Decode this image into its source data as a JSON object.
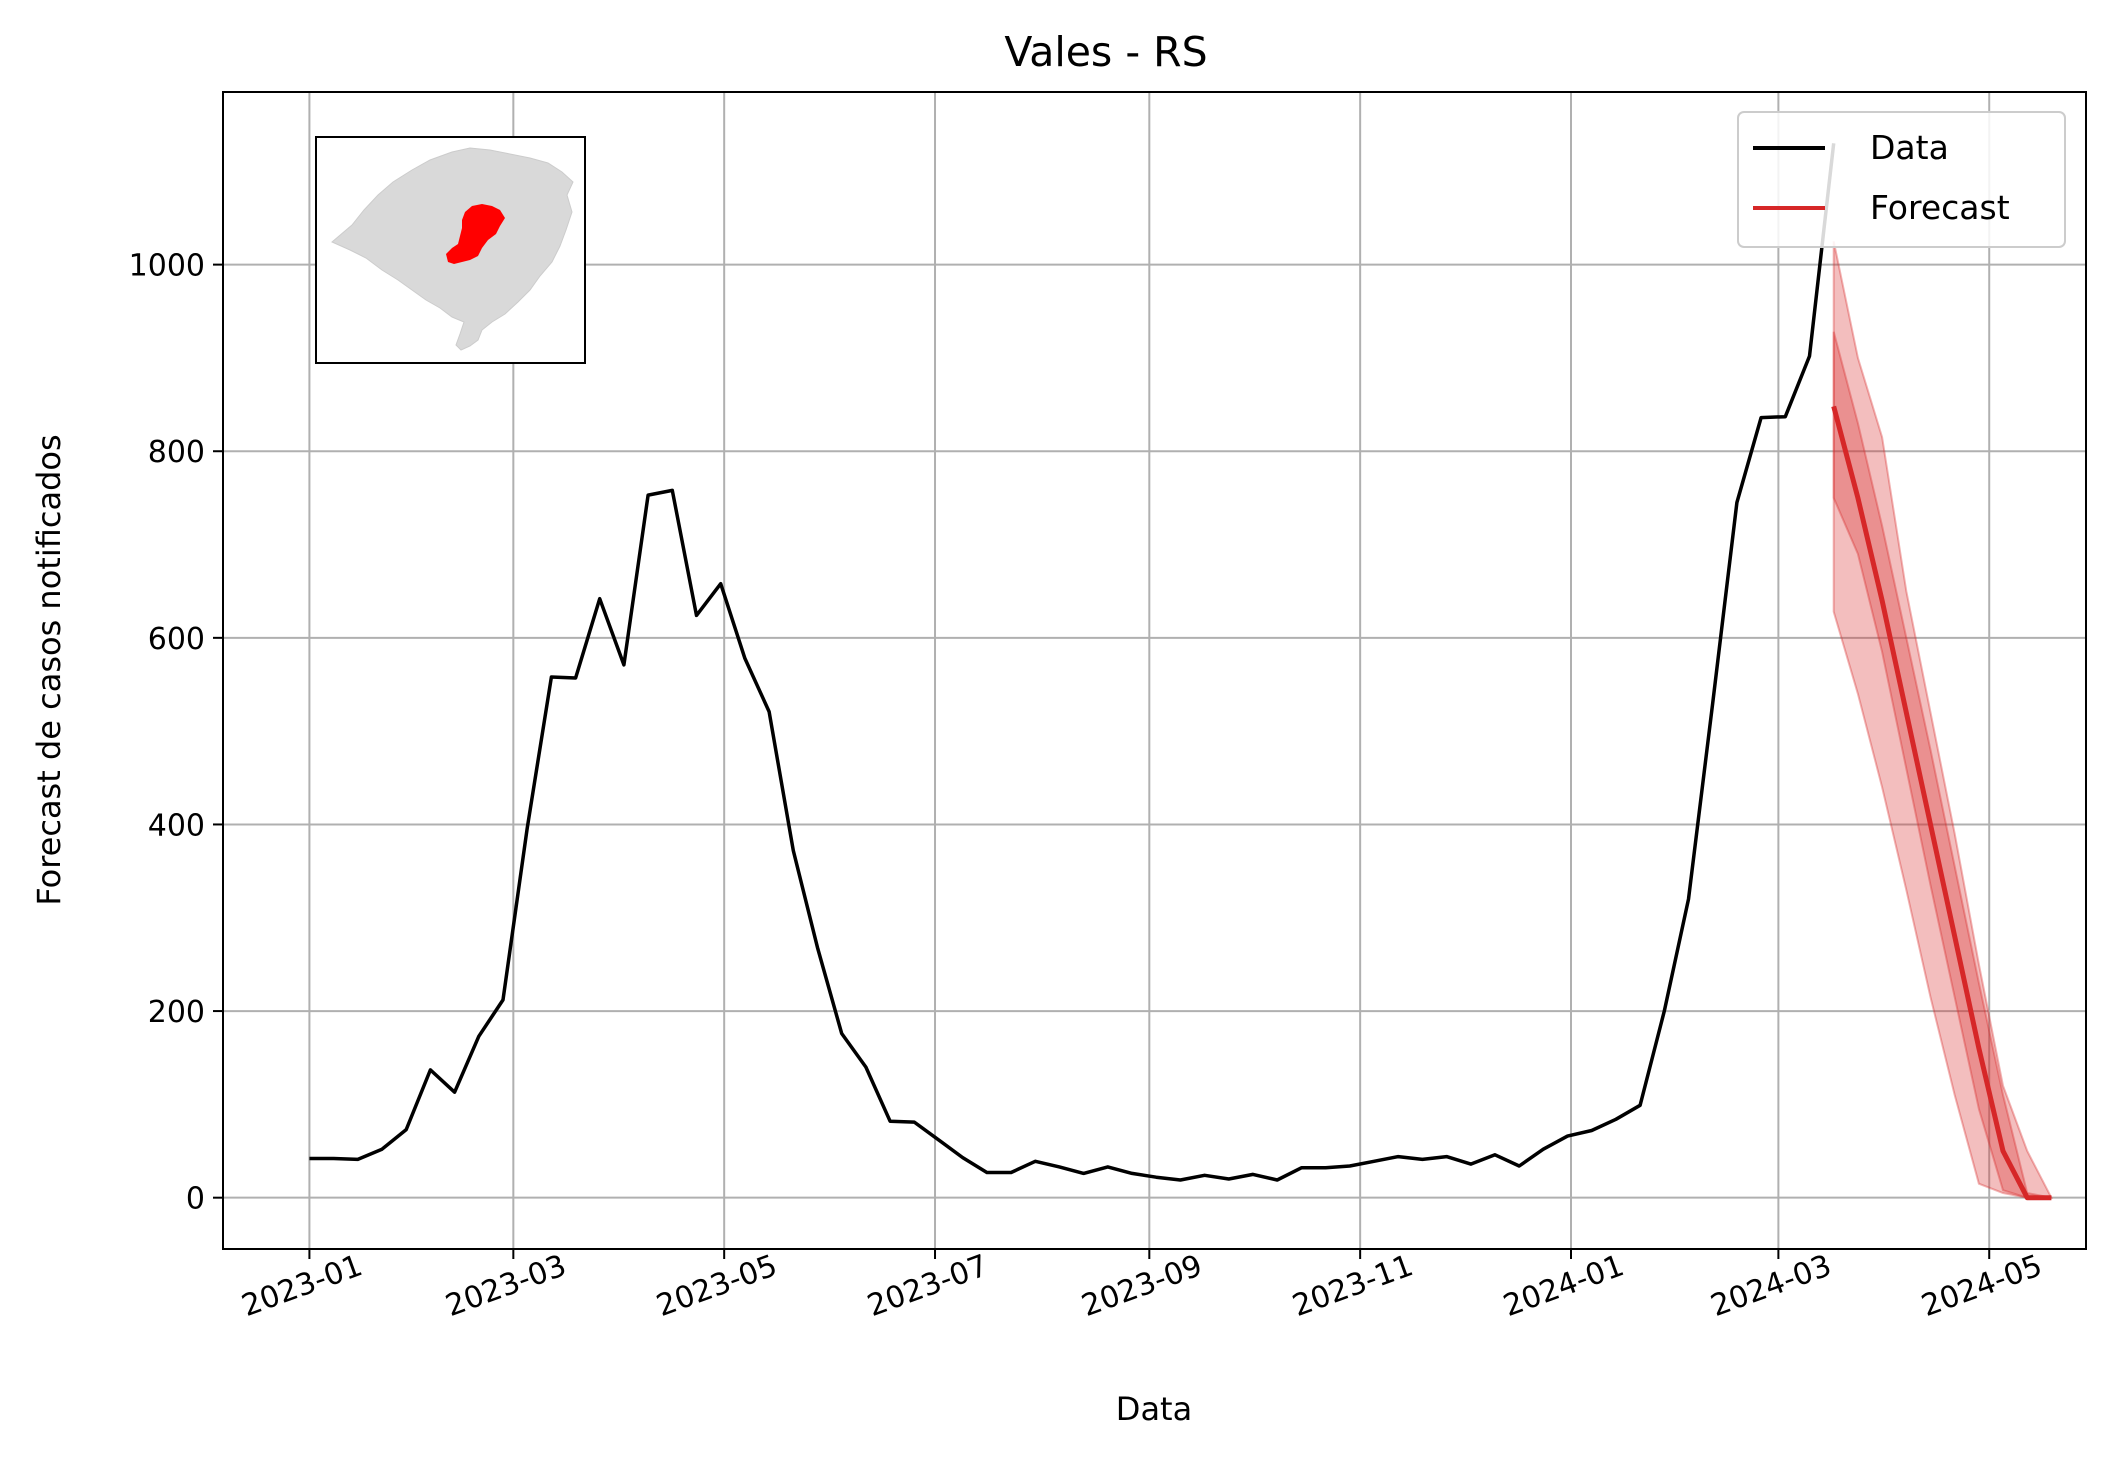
{
  "chart_data": {
    "type": "line",
    "title": "Vales - RS",
    "xlabel": "Data",
    "ylabel": "Forecast de casos notificados",
    "x_ticks": [
      "2023-01",
      "2023-03",
      "2023-05",
      "2023-07",
      "2023-09",
      "2023-11",
      "2024-01",
      "2024-03",
      "2024-05"
    ],
    "y_ticks": [
      0,
      200,
      400,
      600,
      800,
      1000
    ],
    "xlim": [
      "2022-12-07",
      "2024-05-29"
    ],
    "ylim": [
      -55,
      1185
    ],
    "grid": true,
    "legend_position": "top-right",
    "inset_map": {
      "description_icon": "rio-grande-do-sul-map-icon",
      "highlight_color": "#ff0000",
      "base_color": "#d9d9d9"
    },
    "series": [
      {
        "name": "Data",
        "color": "#000000",
        "x": [
          "2023-01-01",
          "2023-01-08",
          "2023-01-15",
          "2023-01-22",
          "2023-01-29",
          "2023-02-05",
          "2023-02-12",
          "2023-02-19",
          "2023-02-26",
          "2023-03-05",
          "2023-03-12",
          "2023-03-19",
          "2023-03-26",
          "2023-04-02",
          "2023-04-09",
          "2023-04-16",
          "2023-04-23",
          "2023-04-30",
          "2023-05-07",
          "2023-05-14",
          "2023-05-21",
          "2023-05-28",
          "2023-06-04",
          "2023-06-11",
          "2023-06-18",
          "2023-06-25",
          "2023-07-02",
          "2023-07-09",
          "2023-07-16",
          "2023-07-23",
          "2023-07-30",
          "2023-08-06",
          "2023-08-13",
          "2023-08-20",
          "2023-08-27",
          "2023-09-03",
          "2023-09-10",
          "2023-09-17",
          "2023-09-24",
          "2023-10-01",
          "2023-10-08",
          "2023-10-15",
          "2023-10-22",
          "2023-10-29",
          "2023-11-05",
          "2023-11-12",
          "2023-11-19",
          "2023-11-26",
          "2023-12-03",
          "2023-12-10",
          "2023-12-17",
          "2023-12-24",
          "2023-12-31",
          "2024-01-07",
          "2024-01-14",
          "2024-01-21",
          "2024-01-28",
          "2024-02-04",
          "2024-02-11",
          "2024-02-18",
          "2024-02-25",
          "2024-03-03",
          "2024-03-10",
          "2024-03-17"
        ],
        "y": [
          42,
          42,
          41,
          52,
          73,
          137,
          113,
          173,
          212,
          396,
          558,
          557,
          642,
          571,
          753,
          758,
          624,
          658,
          578,
          521,
          372,
          268,
          176,
          140,
          82,
          81,
          62,
          43,
          27,
          27,
          39,
          33,
          26,
          33,
          26,
          22,
          19,
          24,
          20,
          25,
          19,
          32,
          32,
          34,
          39,
          44,
          41,
          44,
          36,
          46,
          34,
          52,
          66,
          72,
          84,
          99,
          200,
          320,
          530,
          745,
          836,
          837,
          902,
          1130
        ]
      },
      {
        "name": "Forecast",
        "color": "#d62728",
        "x": [
          "2024-03-17",
          "2024-03-24",
          "2024-03-31",
          "2024-04-07",
          "2024-04-14",
          "2024-04-21",
          "2024-04-28",
          "2024-05-05",
          "2024-05-12",
          "2024-05-19"
        ],
        "y": [
          848,
          750,
          640,
          520,
          400,
          280,
          160,
          50,
          0,
          0
        ],
        "inner_lower": [
          750,
          690,
          585,
          460,
          335,
          215,
          95,
          8,
          0,
          0
        ],
        "inner_upper": [
          928,
          830,
          720,
          600,
          480,
          355,
          230,
          110,
          5,
          0
        ],
        "outer_lower": [
          628,
          540,
          440,
          330,
          215,
          110,
          15,
          5,
          0,
          0
        ],
        "outer_upper": [
          1025,
          900,
          815,
          650,
          520,
          390,
          250,
          120,
          50,
          0
        ]
      }
    ]
  }
}
